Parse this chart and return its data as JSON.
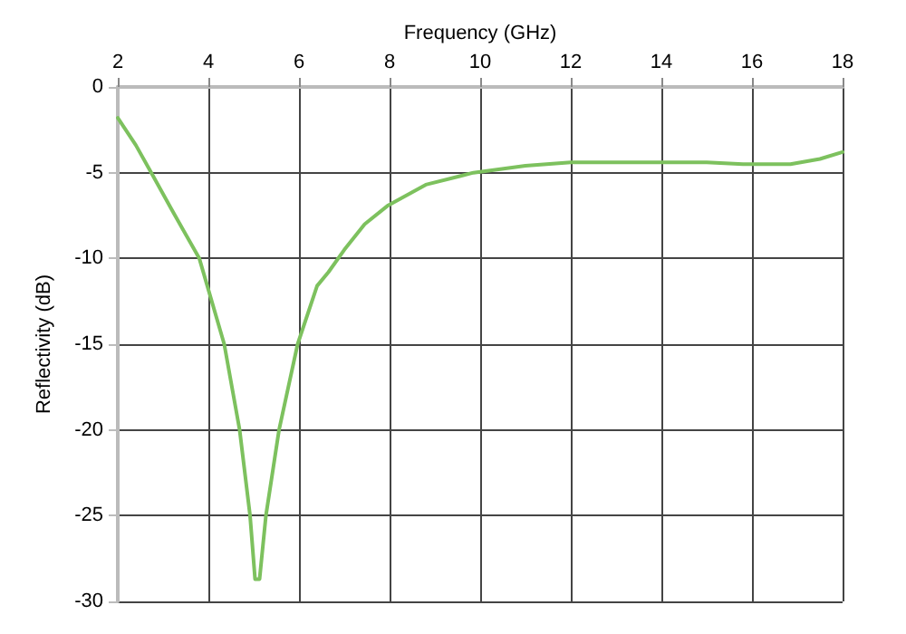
{
  "chart_data": {
    "type": "line",
    "xlabel": "Frequency (GHz)",
    "ylabel": "Reflectivity (dB)",
    "x": [
      2,
      2.4,
      2.74,
      3.2,
      3.8,
      4.35,
      4.69,
      4.92,
      5.03,
      5.13,
      5.27,
      5.56,
      5.97,
      6.4,
      6.65,
      7.0,
      7.45,
      7.97,
      8.8,
      9.85,
      11,
      12,
      13,
      13.9,
      15,
      15.8,
      16.85,
      17.5,
      18
    ],
    "series": [
      {
        "color": "#7dc15e",
        "values": [
          -1.8,
          -3.4,
          -5,
          -7.2,
          -10,
          -15,
          -20,
          -25,
          -28.7,
          -28.7,
          -25,
          -20,
          -15,
          -11.6,
          -10.8,
          -9.5,
          -8,
          -6.9,
          -5.7,
          -5,
          -4.6,
          -4.4,
          -4.4,
          -4.4,
          -4.4,
          -4.5,
          -4.5,
          -4.2,
          -3.8
        ]
      }
    ],
    "xlim": [
      2,
      18
    ],
    "xticks": [
      2,
      4,
      6,
      8,
      10,
      12,
      14,
      16,
      18
    ],
    "ylim": [
      -30,
      0
    ],
    "yticks": [
      -30,
      -25,
      -20,
      -15,
      -10,
      -5,
      0
    ],
    "grid": true,
    "marker": "none",
    "line_style": "solid"
  }
}
